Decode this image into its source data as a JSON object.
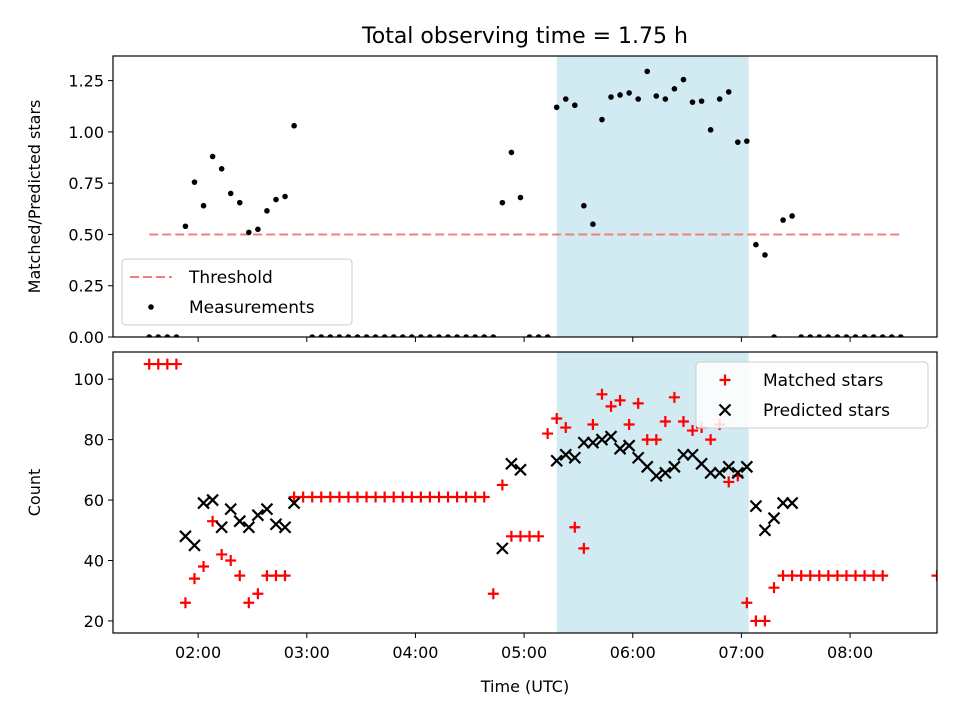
{
  "chart_data": [
    {
      "type": "scatter",
      "title": "Total observing time = 1.75 h",
      "xlabel": "",
      "ylabel": "Matched/Predicted stars",
      "xlim": [
        "01:13",
        "08:48"
      ],
      "ylim": [
        0,
        1.37
      ],
      "yticks": [
        0,
        0.25,
        0.5,
        0.75,
        1.0,
        1.25
      ],
      "ytick_labels": [
        "0.00",
        "0.25",
        "0.50",
        "0.75",
        "1.00",
        "1.25"
      ],
      "xticks": [
        "02:00",
        "03:00",
        "04:00",
        "05:00",
        "06:00",
        "07:00",
        "08:00"
      ],
      "legend_position": "lower-left",
      "highlight_span": {
        "from": "05:18",
        "to": "07:04",
        "color": "#add8e6"
      },
      "series": [
        {
          "name": "Threshold",
          "style": "dashed-line",
          "color": "#f08080",
          "x": [
            "01:33",
            "08:28"
          ],
          "y": [
            0.5,
            0.5
          ]
        },
        {
          "name": "Measurements",
          "style": "dot",
          "color": "#000000",
          "x": [
            "01:33",
            "01:38",
            "01:43",
            "01:48",
            "01:53",
            "01:58",
            "02:03",
            "02:08",
            "02:13",
            "02:18",
            "02:23",
            "02:28",
            "02:33",
            "02:38",
            "02:43",
            "02:48",
            "02:53",
            "03:03",
            "03:08",
            "03:13",
            "03:18",
            "03:23",
            "03:28",
            "03:33",
            "03:38",
            "03:43",
            "03:48",
            "03:53",
            "03:58",
            "04:03",
            "04:08",
            "04:13",
            "04:18",
            "04:23",
            "04:28",
            "04:33",
            "04:38",
            "04:43",
            "04:48",
            "04:53",
            "04:58",
            "05:03",
            "05:08",
            "05:13",
            "05:18",
            "05:23",
            "05:28",
            "05:33",
            "05:38",
            "05:43",
            "05:48",
            "05:53",
            "05:58",
            "06:03",
            "06:08",
            "06:13",
            "06:18",
            "06:23",
            "06:28",
            "06:33",
            "06:38",
            "06:43",
            "06:48",
            "06:53",
            "06:58",
            "07:03",
            "07:08",
            "07:13",
            "07:18",
            "07:23",
            "07:28",
            "07:33",
            "07:38",
            "07:43",
            "07:48",
            "07:53",
            "07:58",
            "08:03",
            "08:08",
            "08:13",
            "08:18",
            "08:23",
            "08:28"
          ],
          "y": [
            0,
            0,
            0,
            0,
            0.54,
            0.755,
            0.64,
            0.88,
            0.82,
            0.7,
            0.655,
            0.51,
            0.525,
            0.615,
            0.67,
            0.685,
            1.03,
            0,
            0,
            0,
            0,
            0,
            0,
            0,
            0,
            0,
            0,
            0,
            0,
            0,
            0,
            0,
            0,
            0,
            0,
            0,
            0,
            0,
            0.655,
            0.9,
            0.68,
            0,
            0,
            0,
            1.12,
            1.16,
            1.13,
            0.64,
            0.55,
            1.06,
            1.17,
            1.18,
            1.19,
            1.16,
            1.295,
            1.175,
            1.16,
            1.21,
            1.255,
            1.145,
            1.15,
            1.01,
            1.16,
            1.195,
            0.95,
            0.955,
            0.45,
            0.4,
            0,
            0.57,
            0.59,
            0,
            0,
            0,
            0,
            0,
            0,
            0,
            0,
            0,
            0,
            0,
            0
          ]
        }
      ]
    },
    {
      "type": "scatter",
      "title": "",
      "xlabel": "Time (UTC)",
      "ylabel": "Count",
      "xlim": [
        "01:13",
        "08:48"
      ],
      "ylim": [
        16,
        109
      ],
      "yticks": [
        20,
        40,
        60,
        80,
        100
      ],
      "ytick_labels": [
        "20",
        "40",
        "60",
        "80",
        "100"
      ],
      "xticks": [
        "02:00",
        "03:00",
        "04:00",
        "05:00",
        "06:00",
        "07:00",
        "08:00"
      ],
      "legend_position": "top-right",
      "highlight_span": {
        "from": "05:18",
        "to": "07:04",
        "color": "#add8e6"
      },
      "series": [
        {
          "name": "Matched stars",
          "style": "plus",
          "color": "#ff0000",
          "x": [
            "01:33",
            "01:38",
            "01:43",
            "01:48",
            "01:53",
            "01:58",
            "02:03",
            "02:08",
            "02:13",
            "02:18",
            "02:23",
            "02:28",
            "02:33",
            "02:38",
            "02:43",
            "02:48",
            "02:53",
            "02:58",
            "03:03",
            "03:08",
            "03:13",
            "03:18",
            "03:23",
            "03:28",
            "03:33",
            "03:38",
            "03:43",
            "03:48",
            "03:53",
            "03:58",
            "04:03",
            "04:08",
            "04:13",
            "04:18",
            "04:23",
            "04:28",
            "04:33",
            "04:38",
            "04:43",
            "04:48",
            "04:53",
            "04:58",
            "05:03",
            "05:08",
            "05:13",
            "05:18",
            "05:23",
            "05:28",
            "05:33",
            "05:38",
            "05:43",
            "05:48",
            "05:53",
            "05:58",
            "06:03",
            "06:08",
            "06:13",
            "06:18",
            "06:23",
            "06:28",
            "06:33",
            "06:38",
            "06:43",
            "06:48",
            "06:53",
            "06:58",
            "07:03",
            "07:08",
            "07:13",
            "07:18",
            "07:23",
            "07:28",
            "07:33",
            "07:38",
            "07:43",
            "07:48",
            "07:53",
            "07:58",
            "08:03",
            "08:08",
            "08:13",
            "08:18",
            "08:48"
          ],
          "y": [
            105,
            105,
            105,
            105,
            26,
            34,
            38,
            53,
            42,
            40,
            35,
            26,
            29,
            35,
            35,
            35,
            61,
            61,
            61,
            61,
            61,
            61,
            61,
            61,
            61,
            61,
            61,
            61,
            61,
            61,
            61,
            61,
            61,
            61,
            61,
            61,
            61,
            61,
            29,
            65,
            48,
            48,
            48,
            48,
            82,
            87,
            84,
            51,
            44,
            85,
            95,
            91,
            93,
            85,
            92,
            80,
            80,
            86,
            94,
            86,
            83,
            84,
            80,
            85,
            66,
            68,
            26,
            20,
            20,
            31,
            35,
            35,
            35,
            35,
            35,
            35,
            35,
            35,
            35,
            35,
            35,
            35,
            35
          ]
        },
        {
          "name": "Predicted stars",
          "style": "x",
          "color": "#000000",
          "x": [
            "01:53",
            "01:58",
            "02:03",
            "02:08",
            "02:13",
            "02:18",
            "02:23",
            "02:28",
            "02:33",
            "02:38",
            "02:43",
            "02:48",
            "02:53",
            "04:48",
            "04:53",
            "04:58",
            "05:18",
            "05:23",
            "05:28",
            "05:33",
            "05:38",
            "05:43",
            "05:48",
            "05:53",
            "05:58",
            "06:03",
            "06:08",
            "06:13",
            "06:18",
            "06:23",
            "06:28",
            "06:33",
            "06:38",
            "06:43",
            "06:48",
            "06:53",
            "06:58",
            "07:03",
            "07:08",
            "07:13",
            "07:18",
            "07:23",
            "07:28"
          ],
          "y": [
            48,
            45,
            59,
            60,
            51,
            57,
            53,
            51,
            55,
            57,
            52,
            51,
            59,
            44,
            72,
            70,
            73,
            75,
            74,
            79,
            79,
            80,
            81,
            77,
            78,
            74,
            71,
            68,
            69,
            71,
            75,
            75,
            72,
            69,
            69,
            71,
            69,
            71,
            58,
            50,
            54,
            59,
            59
          ]
        }
      ]
    }
  ]
}
